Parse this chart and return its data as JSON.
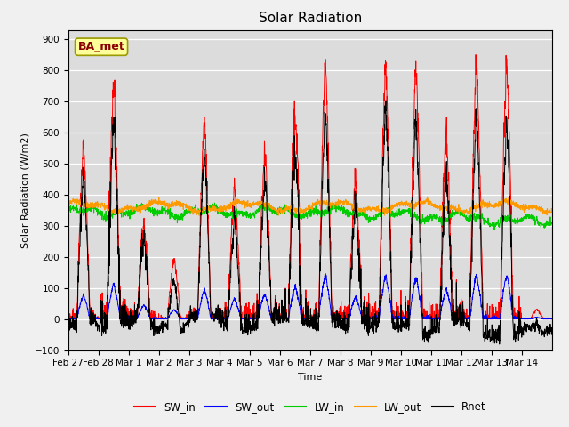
{
  "title": "Solar Radiation",
  "ylabel": "Solar Radiation (W/m2)",
  "xlabel": "Time",
  "ylim": [
    -100,
    930
  ],
  "yticks": [
    -100,
    0,
    100,
    200,
    300,
    400,
    500,
    600,
    700,
    800,
    900
  ],
  "fig_bg_color": "#f0f0f0",
  "plot_bg_color": "#dcdcdc",
  "annotation_text": "BA_met",
  "series_colors": {
    "SW_in": "#ff0000",
    "SW_out": "#0000ff",
    "LW_in": "#00cc00",
    "LW_out": "#ff9900",
    "Rnet": "#000000"
  },
  "xtick_labels": [
    "Feb 27",
    "Feb 28",
    "Mar 1",
    "Mar 2",
    "Mar 3",
    "Mar 4",
    "Mar 5",
    "Mar 6",
    "Mar 7",
    "Mar 8",
    "Mar 9",
    "Mar 10",
    "Mar 11",
    "Mar 12",
    "Mar 13",
    "Mar 14"
  ],
  "n_days": 16,
  "pts_per_day": 144,
  "lw_in_base": 345,
  "lw_out_base": 362
}
